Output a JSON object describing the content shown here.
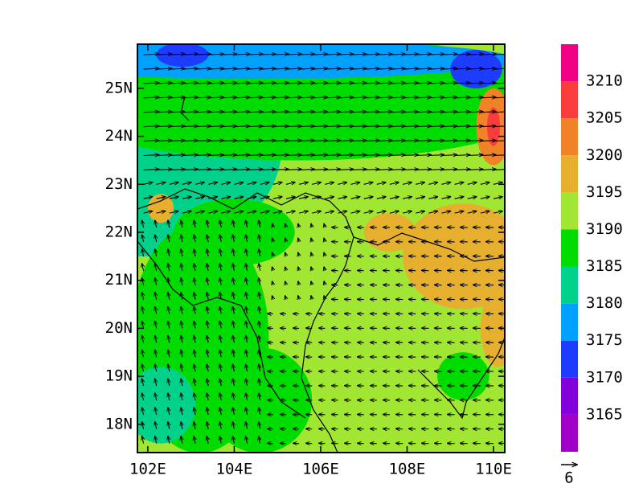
{
  "map": {
    "xlim": [
      101.76,
      110.26
    ],
    "ylim": [
      17.41,
      25.92
    ],
    "xticks": [
      {
        "value": 102,
        "label": "102E"
      },
      {
        "value": 104,
        "label": "104E"
      },
      {
        "value": 106,
        "label": "106E"
      },
      {
        "value": 108,
        "label": "108E"
      },
      {
        "value": 110,
        "label": "110E"
      }
    ],
    "yticks": [
      {
        "value": 18,
        "label": "18N"
      },
      {
        "value": 19,
        "label": "19N"
      },
      {
        "value": 20,
        "label": "20N"
      },
      {
        "value": 21,
        "label": "21N"
      },
      {
        "value": 22,
        "label": "22N"
      },
      {
        "value": 23,
        "label": "23N"
      },
      {
        "value": 24,
        "label": "24N"
      },
      {
        "value": 25,
        "label": "25N"
      }
    ],
    "colorbar": {
      "levels": [
        3165,
        3170,
        3175,
        3180,
        3185,
        3190,
        3195,
        3200,
        3205,
        3210
      ],
      "colors": [
        "#a000c8",
        "#8200dc",
        "#1e3cff",
        "#00a0ff",
        "#00d28c",
        "#00dc00",
        "#a0e632",
        "#e6af2d",
        "#f08228",
        "#fa3c3c",
        "#f00082"
      ]
    },
    "reference_vector": {
      "label": "6"
    }
  }
}
